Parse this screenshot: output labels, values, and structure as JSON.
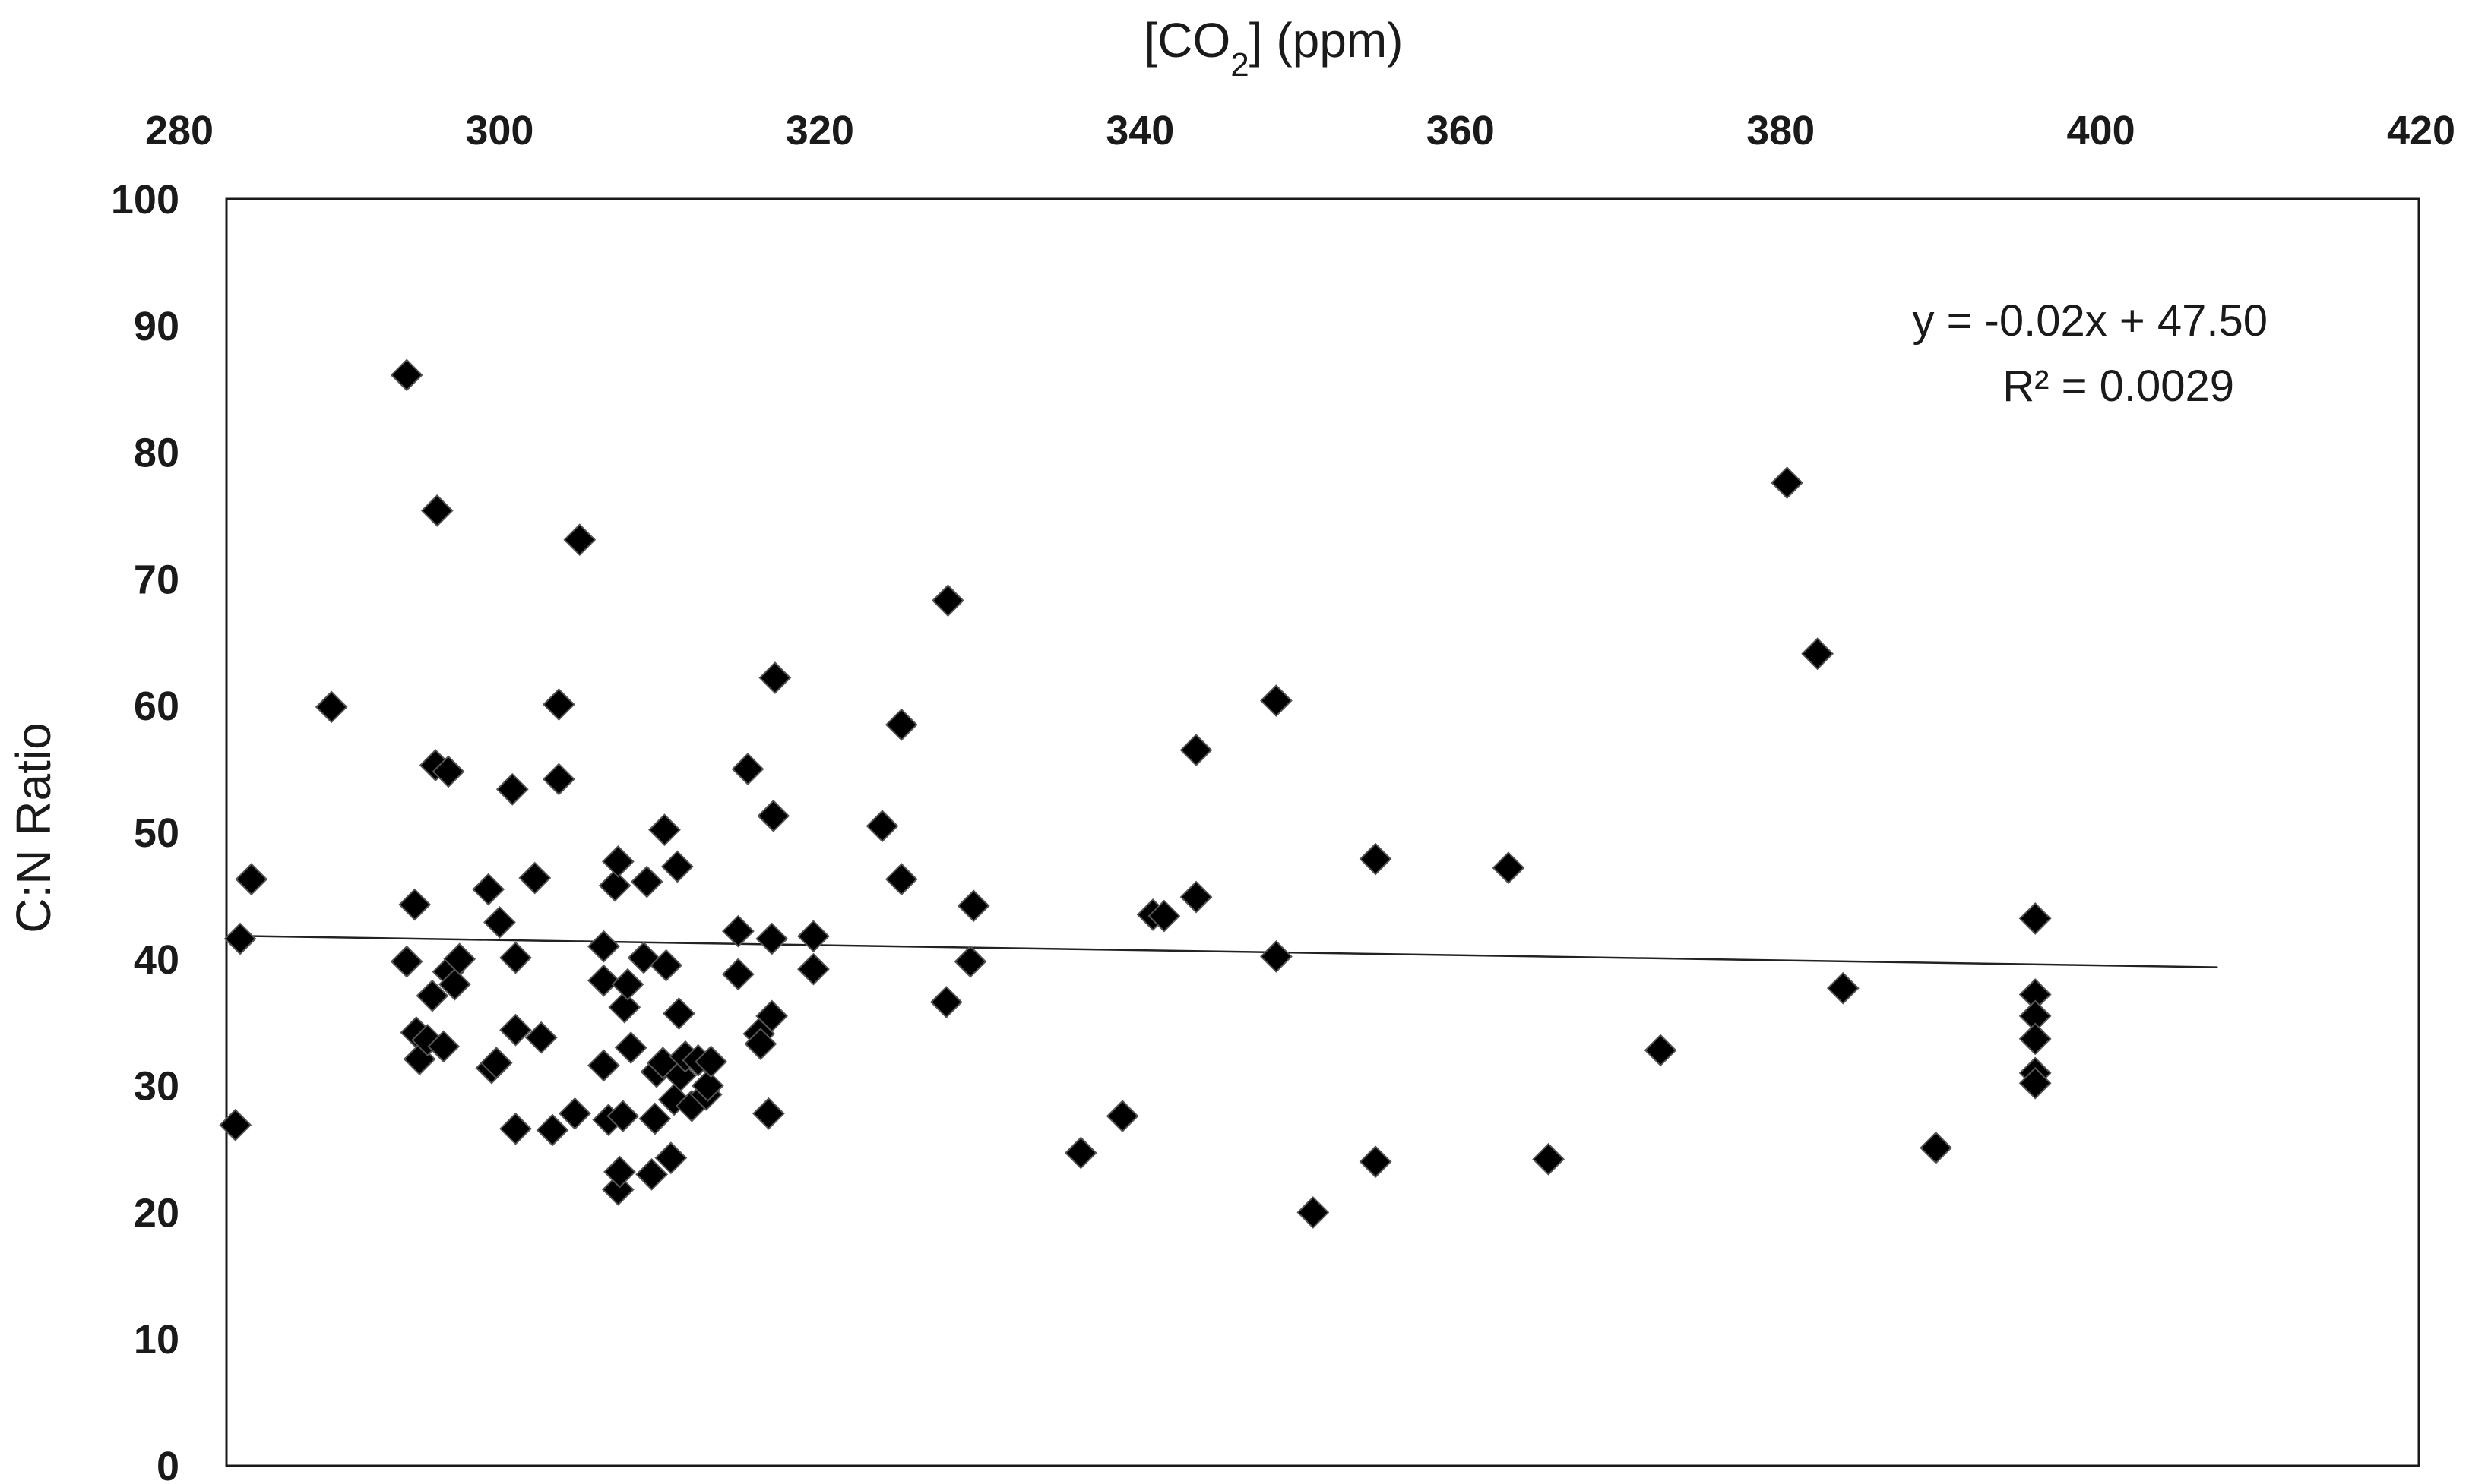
{
  "chart_data": {
    "type": "scatter",
    "title": "",
    "xlabel": {
      "prefix": "[CO",
      "subscript": "2",
      "suffix": "] (ppm)"
    },
    "ylabel": "C:N Ratio",
    "xlim": [
      280,
      420
    ],
    "ylim": [
      0,
      100
    ],
    "x_axis_position": "top",
    "x_ticks": [
      "280",
      "300",
      "320",
      "340",
      "360",
      "380",
      "400",
      "420"
    ],
    "y_ticks": [
      "0",
      "10",
      "20",
      "30",
      "40",
      "50",
      "60",
      "70",
      "80",
      "90",
      "100"
    ],
    "grid": false,
    "legend": "none",
    "marker": "diamond",
    "marker_color": "#000000",
    "trendline": {
      "slope": -0.02,
      "intercept": 47.5,
      "x_range": [
        283.5,
        407.3
      ]
    },
    "equation_label": "y = -0.02x + 47.50",
    "r2_label": "R² = 0.0029",
    "points": [
      [
        283.5,
        26.9
      ],
      [
        283.8,
        41.6
      ],
      [
        284.5,
        46.3
      ],
      [
        289.5,
        59.9
      ],
      [
        294.2,
        86.1
      ],
      [
        294.2,
        39.8
      ],
      [
        294.7,
        44.3
      ],
      [
        294.8,
        34.2
      ],
      [
        295.0,
        32.1
      ],
      [
        295.5,
        33.6
      ],
      [
        295.8,
        37.1
      ],
      [
        296.0,
        55.3
      ],
      [
        296.1,
        75.4
      ],
      [
        296.5,
        33.1
      ],
      [
        296.8,
        39.0
      ],
      [
        296.8,
        54.8
      ],
      [
        297.2,
        38.0
      ],
      [
        297.5,
        40.0
      ],
      [
        299.3,
        45.5
      ],
      [
        299.5,
        31.4
      ],
      [
        299.8,
        31.8
      ],
      [
        300.0,
        42.9
      ],
      [
        300.8,
        53.4
      ],
      [
        301.0,
        40.1
      ],
      [
        301.0,
        34.4
      ],
      [
        301.0,
        26.6
      ],
      [
        302.2,
        46.4
      ],
      [
        302.6,
        33.8
      ],
      [
        303.3,
        26.5
      ],
      [
        303.7,
        60.1
      ],
      [
        303.7,
        54.2
      ],
      [
        304.7,
        27.8
      ],
      [
        305.0,
        73.1
      ],
      [
        306.5,
        41.0
      ],
      [
        306.5,
        38.3
      ],
      [
        306.5,
        31.6
      ],
      [
        306.8,
        27.3
      ],
      [
        307.2,
        45.8
      ],
      [
        307.4,
        47.7
      ],
      [
        307.4,
        21.8
      ],
      [
        307.5,
        23.2
      ],
      [
        307.7,
        27.6
      ],
      [
        307.8,
        36.2
      ],
      [
        308.0,
        38.0
      ],
      [
        308.2,
        33.0
      ],
      [
        309.0,
        40.1
      ],
      [
        309.2,
        46.1
      ],
      [
        309.5,
        23.0
      ],
      [
        309.7,
        27.4
      ],
      [
        309.8,
        31.1
      ],
      [
        310.2,
        31.8
      ],
      [
        310.3,
        50.2
      ],
      [
        310.4,
        39.5
      ],
      [
        310.7,
        24.3
      ],
      [
        310.9,
        28.9
      ],
      [
        311.1,
        47.3
      ],
      [
        311.2,
        35.7
      ],
      [
        311.3,
        30.8
      ],
      [
        311.6,
        32.3
      ],
      [
        312.0,
        28.4
      ],
      [
        312.4,
        32.0
      ],
      [
        312.9,
        29.3
      ],
      [
        313.0,
        30.0
      ],
      [
        313.2,
        31.9
      ],
      [
        314.9,
        42.2
      ],
      [
        314.9,
        38.8
      ],
      [
        315.5,
        55.0
      ],
      [
        316.2,
        34.1
      ],
      [
        316.3,
        33.3
      ],
      [
        316.8,
        27.8
      ],
      [
        317.0,
        35.5
      ],
      [
        317.0,
        41.6
      ],
      [
        317.1,
        51.3
      ],
      [
        317.2,
        62.2
      ],
      [
        319.6,
        41.8
      ],
      [
        319.6,
        39.2
      ],
      [
        323.9,
        50.5
      ],
      [
        325.1,
        58.5
      ],
      [
        325.1,
        46.3
      ],
      [
        328.0,
        68.3
      ],
      [
        327.9,
        36.6
      ],
      [
        329.4,
        39.8
      ],
      [
        329.6,
        44.2
      ],
      [
        336.3,
        24.7
      ],
      [
        338.9,
        27.6
      ],
      [
        340.8,
        43.5
      ],
      [
        341.5,
        43.4
      ],
      [
        343.5,
        56.5
      ],
      [
        343.5,
        44.9
      ],
      [
        348.5,
        60.4
      ],
      [
        348.5,
        40.2
      ],
      [
        350.8,
        20.0
      ],
      [
        354.7,
        47.9
      ],
      [
        354.7,
        24.0
      ],
      [
        363.0,
        47.2
      ],
      [
        365.5,
        24.2
      ],
      [
        372.5,
        32.8
      ],
      [
        380.4,
        77.6
      ],
      [
        382.3,
        64.1
      ],
      [
        383.9,
        37.7
      ],
      [
        389.7,
        25.1
      ],
      [
        395.9,
        43.2
      ],
      [
        395.9,
        37.2
      ],
      [
        395.9,
        35.5
      ],
      [
        395.9,
        33.7
      ],
      [
        395.9,
        31.0
      ],
      [
        395.9,
        30.2
      ]
    ]
  }
}
